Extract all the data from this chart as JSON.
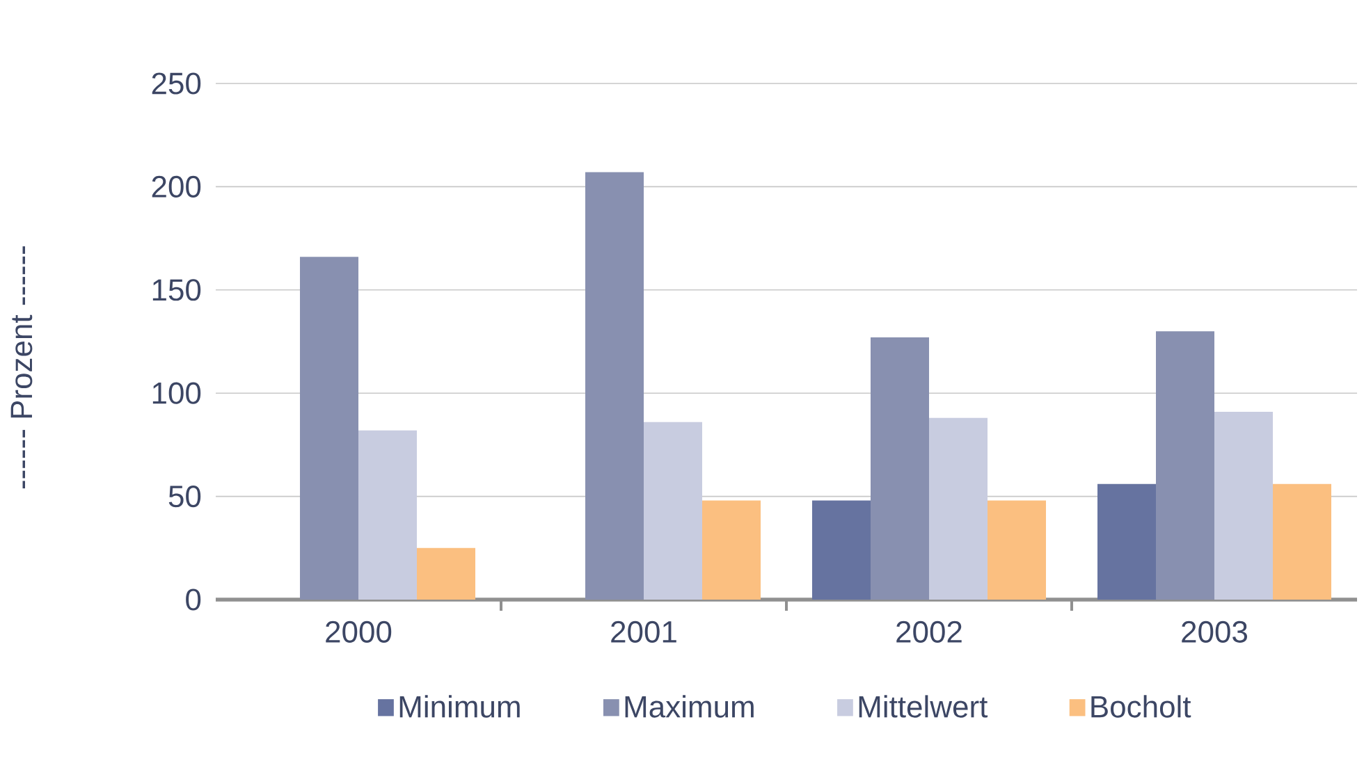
{
  "chart_data": {
    "type": "bar",
    "ylabel": "------ Prozent ------",
    "categories": [
      "2000",
      "2001",
      "2002",
      "2003"
    ],
    "series": [
      {
        "name": "Minimum",
        "color": "#6673a0",
        "values": [
          null,
          null,
          48,
          56
        ]
      },
      {
        "name": "Maximum",
        "color": "#8890b0",
        "values": [
          166,
          207,
          127,
          130
        ]
      },
      {
        "name": "Mittelwert",
        "color": "#c8cce0",
        "values": [
          82,
          86,
          88,
          91
        ]
      },
      {
        "name": "Bocholt",
        "color": "#fbbf80",
        "values": [
          25,
          48,
          48,
          56
        ]
      }
    ],
    "ylim": [
      0,
      250
    ],
    "yticks": [
      0,
      50,
      100,
      150,
      200,
      250
    ],
    "grid": "y",
    "legend": "bottom"
  }
}
